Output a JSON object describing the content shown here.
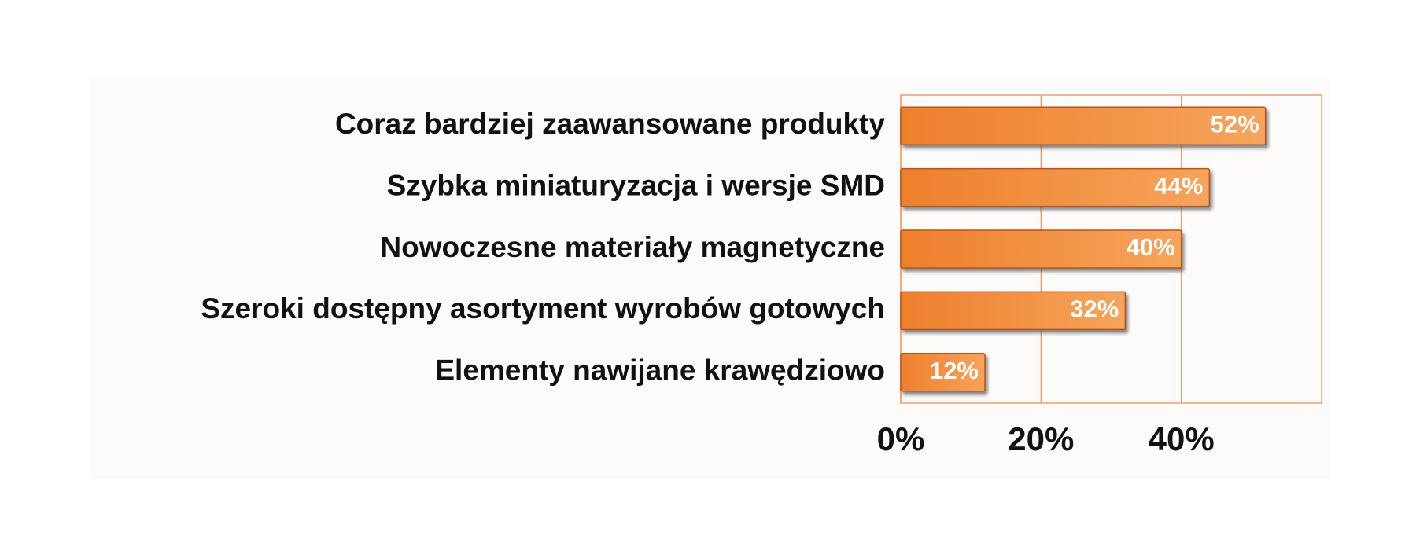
{
  "chart_data": {
    "type": "bar",
    "orientation": "horizontal",
    "categories": [
      "Coraz bardziej zaawansowane produkty",
      "Szybka miniaturyzacja i wersje SMD",
      "Nowoczesne materiały magnetyczne",
      "Szeroki dostępny asortyment wyrobów gotowych",
      "Elementy nawijane krawędziowo"
    ],
    "values": [
      52,
      44,
      40,
      32,
      12
    ],
    "value_labels": [
      "52%",
      "44%",
      "40%",
      "32%",
      "12%"
    ],
    "color": "#f08a3a",
    "xlim": [
      0,
      60
    ],
    "xticks": [
      {
        "value": 0,
        "label": "0%"
      },
      {
        "value": 20,
        "label": "20%"
      },
      {
        "value": 40,
        "label": "40%"
      }
    ],
    "grid": true
  }
}
